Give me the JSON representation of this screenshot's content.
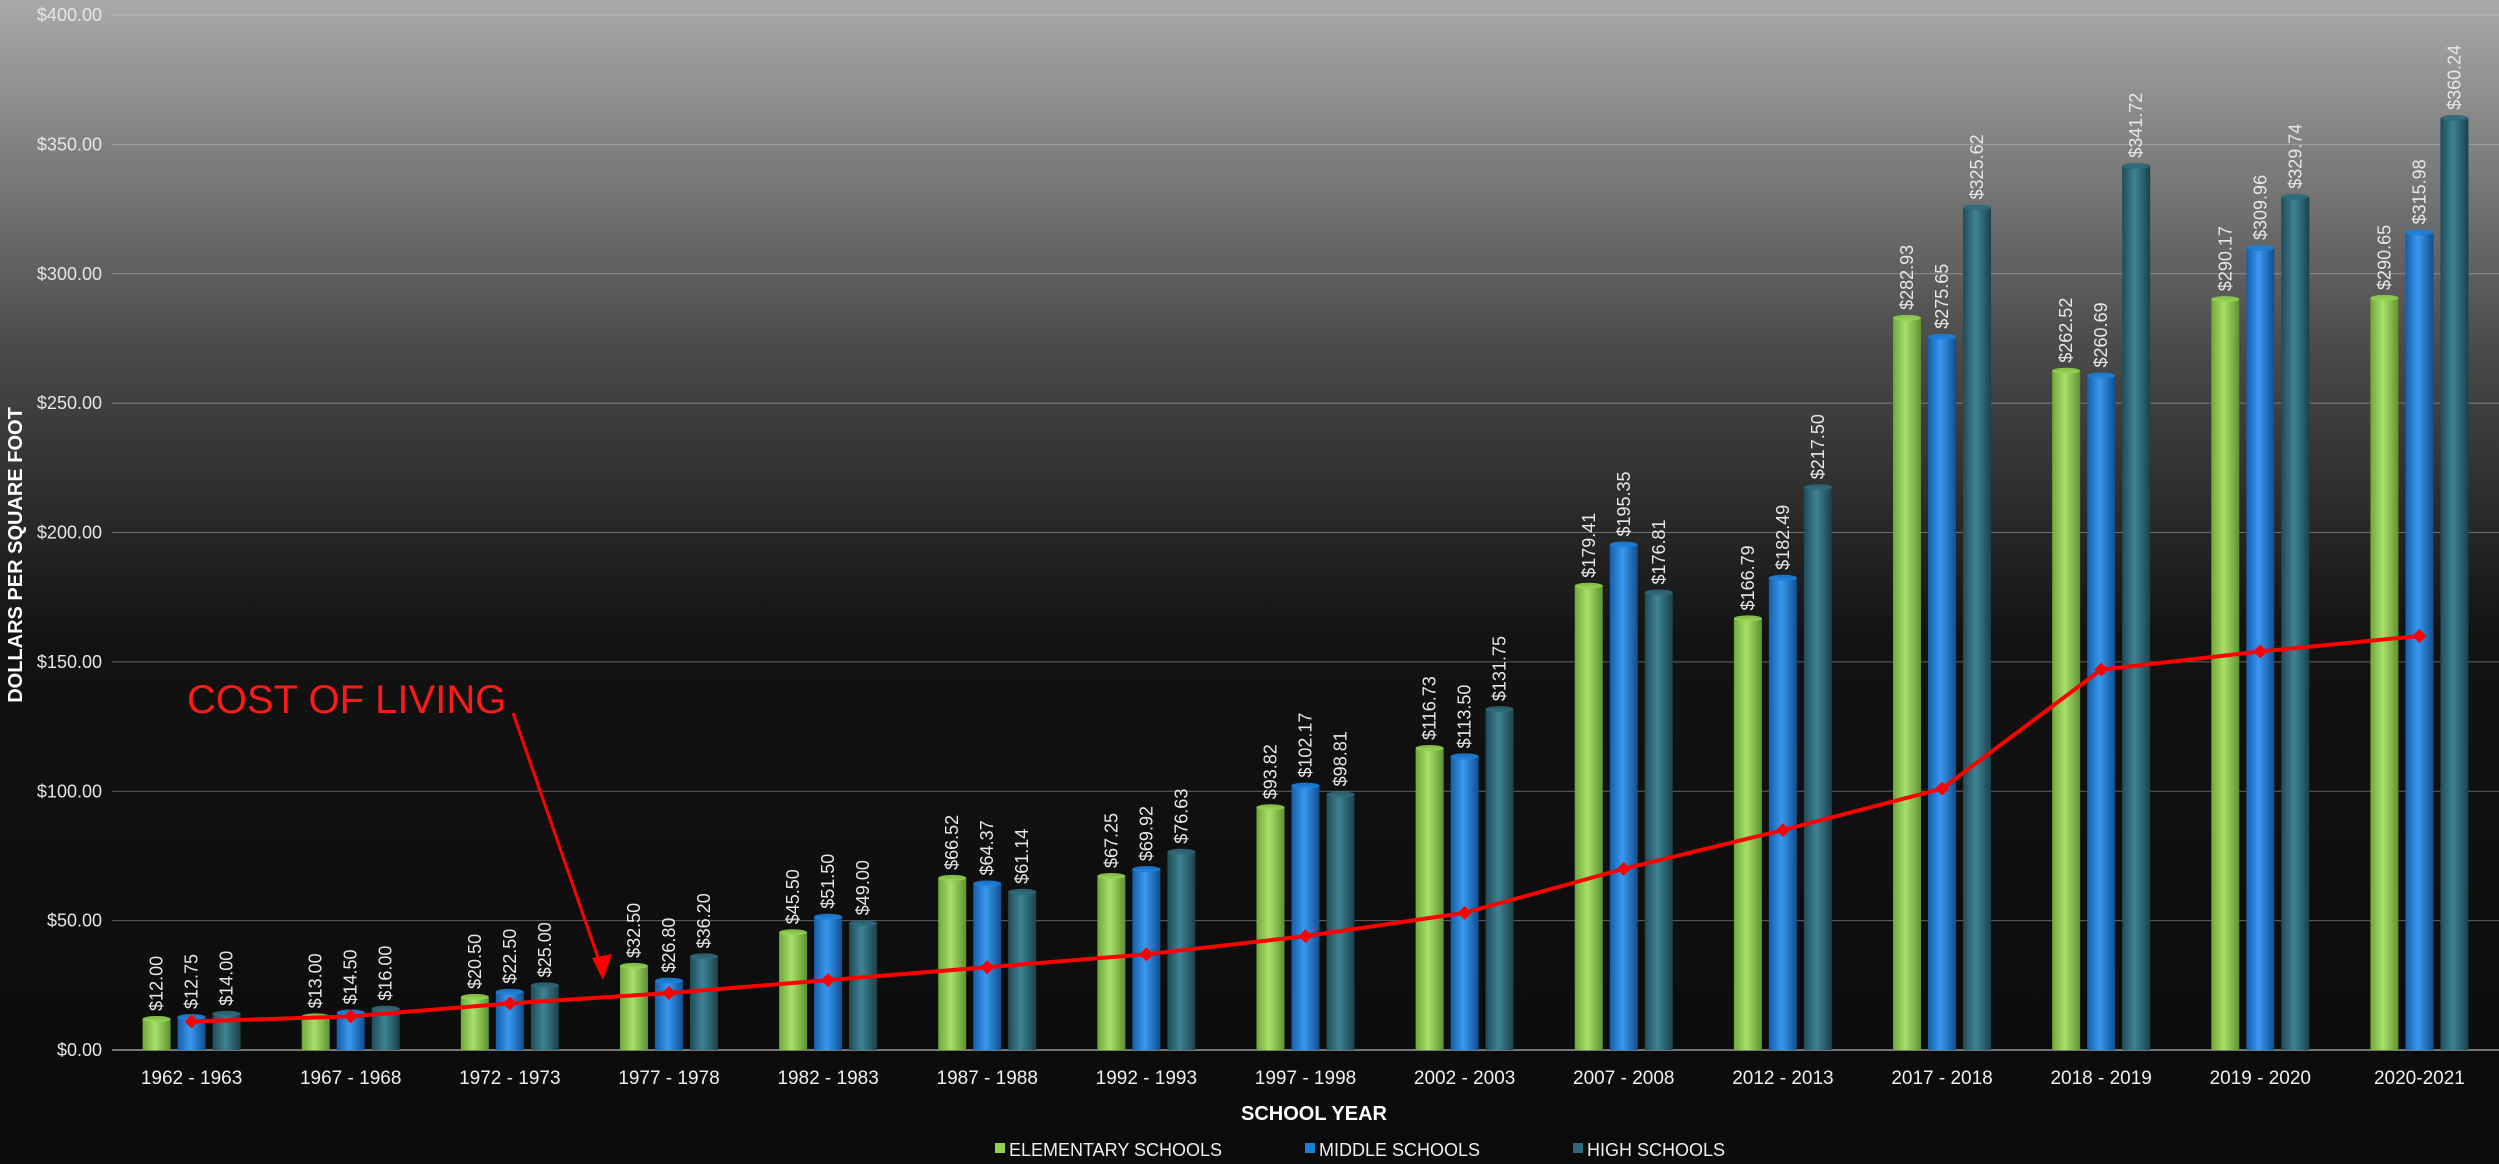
{
  "chart_data": {
    "type": "bar",
    "xlabel": "SCHOOL YEAR",
    "ylabel": "DOLLARS PER SQUARE FOOT",
    "ylim": [
      0,
      400
    ],
    "y_ticks": [
      "$0.00",
      "$50.00",
      "$100.00",
      "$150.00",
      "$200.00",
      "$250.00",
      "$300.00",
      "$350.00",
      "$400.00"
    ],
    "y_tick_values": [
      0,
      50,
      100,
      150,
      200,
      250,
      300,
      350,
      400
    ],
    "grid": true,
    "legend_position": "bottom",
    "categories": [
      "1962 - 1963",
      "1967 - 1968",
      "1972 - 1973",
      "1977 - 1978",
      "1982 - 1983",
      "1987 - 1988",
      "1992 - 1993",
      "1997 - 1998",
      "2002 - 2003",
      "2007 - 2008",
      "2012 - 2013",
      "2017 - 2018",
      "2018 - 2019",
      "2019 - 2020",
      "2020-2021"
    ],
    "series": [
      {
        "name": "ELEMENTARY SCHOOLS",
        "color": "#92d050",
        "values": [
          12.0,
          13.0,
          20.5,
          32.5,
          45.5,
          66.52,
          67.25,
          93.82,
          116.73,
          179.41,
          166.79,
          282.93,
          262.52,
          290.17,
          290.65
        ],
        "labels": [
          "$12.00",
          "$13.00",
          "$20.50",
          "$32.50",
          "$45.50",
          "$66.52",
          "$67.25",
          "$93.82",
          "$116.73",
          "$179.41",
          "$166.79",
          "$282.93",
          "$262.52",
          "$290.17",
          "$290.65"
        ]
      },
      {
        "name": "MIDDLE SCHOOLS",
        "color": "#1e7fd8",
        "values": [
          12.75,
          14.5,
          22.5,
          26.8,
          51.5,
          64.37,
          69.92,
          102.17,
          113.5,
          195.35,
          182.49,
          275.65,
          260.69,
          309.96,
          315.98
        ],
        "labels": [
          "$12.75",
          "$14.50",
          "$22.50",
          "$26.80",
          "$51.50",
          "$64.37",
          "$69.92",
          "$102.17",
          "$113.50",
          "$195.35",
          "$182.49",
          "$275.65",
          "$260.69",
          "$309.96",
          "$315.98"
        ]
      },
      {
        "name": "HIGH SCHOOLS",
        "color": "#2f6a7a",
        "values": [
          14.0,
          16.0,
          25.0,
          36.2,
          49.0,
          61.14,
          76.63,
          98.81,
          131.75,
          176.81,
          217.5,
          325.62,
          341.72,
          329.74,
          360.24
        ],
        "labels": [
          "$14.00",
          "$16.00",
          "$25.00",
          "$36.20",
          "$49.00",
          "$61.14",
          "$76.63",
          "$98.81",
          "$131.75",
          "$176.81",
          "$217.50",
          "$325.62",
          "$341.72",
          "$329.74",
          "$360.24"
        ]
      }
    ],
    "line": {
      "color": "#ff0000",
      "values": [
        11,
        13,
        18,
        22,
        27,
        32,
        37,
        44,
        53,
        70,
        85,
        101,
        147,
        154,
        160
      ]
    },
    "annotation": {
      "text": "COST OF LIVING",
      "color": "#ff1a1a"
    }
  }
}
